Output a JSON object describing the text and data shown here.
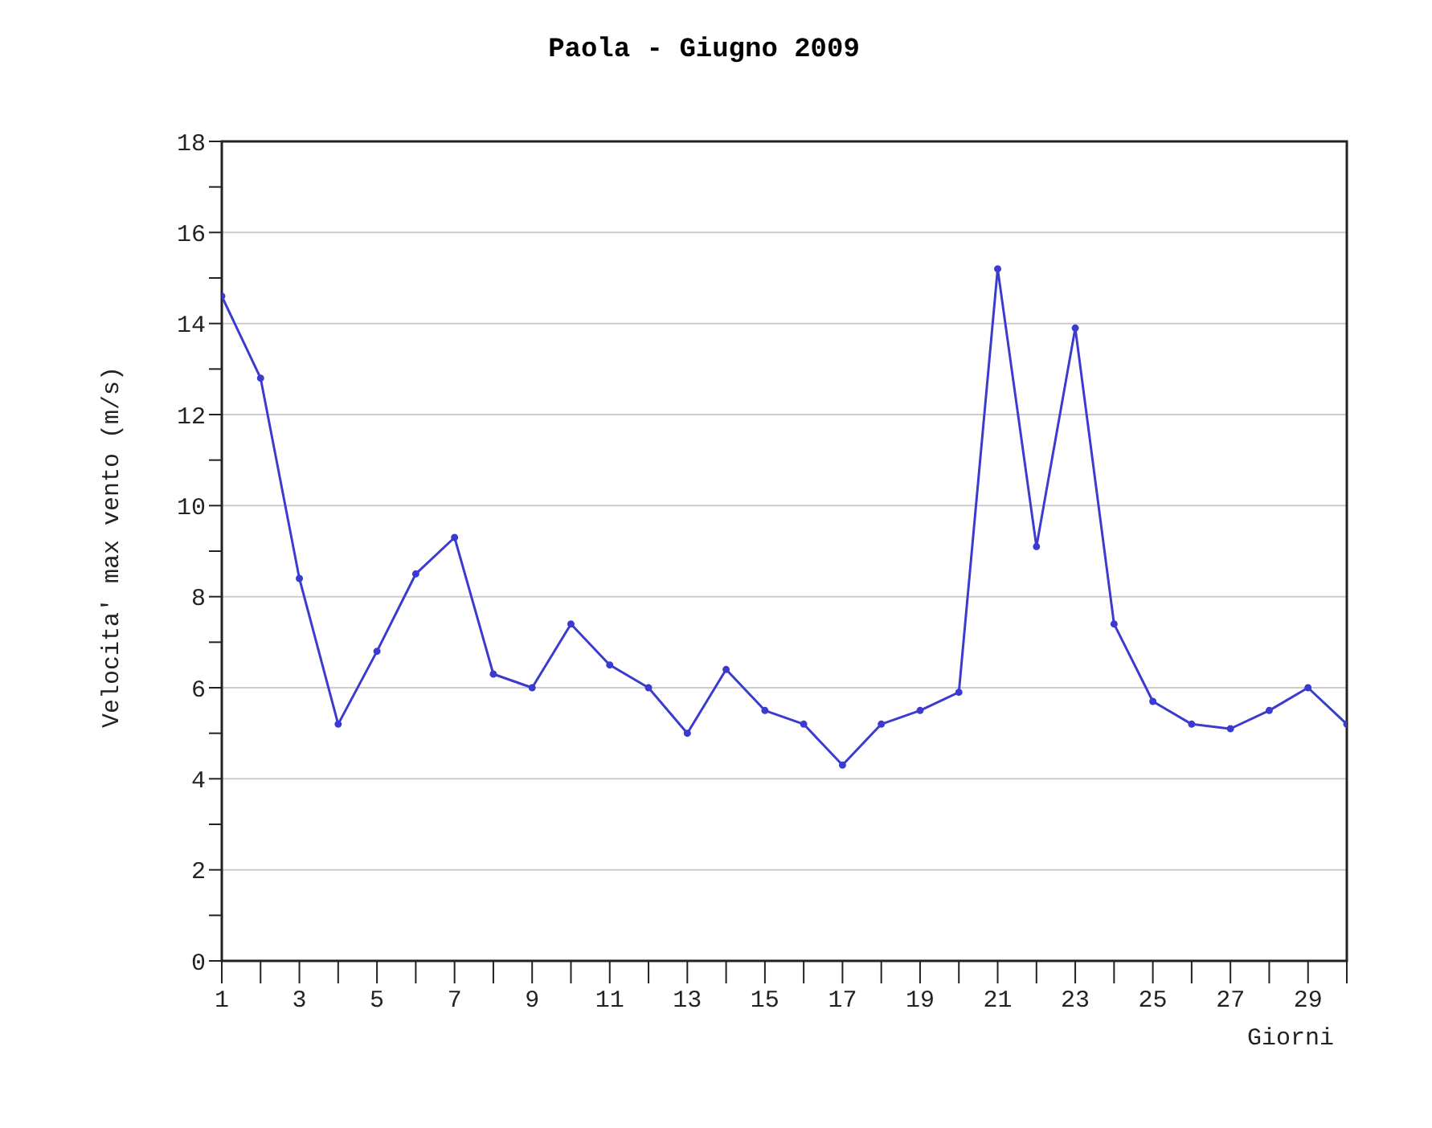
{
  "chart_data": {
    "type": "line",
    "title": "Paola - Giugno 2009",
    "xlabel": "Giorni",
    "ylabel": "Velocita' max vento (m/s)",
    "x": [
      1,
      2,
      3,
      4,
      5,
      6,
      7,
      8,
      9,
      10,
      11,
      12,
      13,
      14,
      15,
      16,
      17,
      18,
      19,
      20,
      21,
      22,
      23,
      24,
      25,
      26,
      27,
      28,
      29,
      30
    ],
    "series": [
      {
        "color": "#3b3bd0",
        "values": [
          14.6,
          12.8,
          8.4,
          5.2,
          6.8,
          8.5,
          9.3,
          6.3,
          6.0,
          7.4,
          6.5,
          6.0,
          5.0,
          6.4,
          5.5,
          5.2,
          4.3,
          5.2,
          5.5,
          5.9,
          15.2,
          9.1,
          13.9,
          7.4,
          5.7,
          5.2,
          5.1,
          5.5,
          6.0,
          5.2
        ]
      }
    ],
    "xlim": [
      1,
      30
    ],
    "xticks": [
      1,
      {
        "value": 2,
        "label": null
      },
      3,
      {
        "value": 4,
        "label": null
      },
      5,
      {
        "value": 6,
        "label": null
      },
      7,
      {
        "value": 8,
        "label": null
      },
      9,
      {
        "value": 10,
        "label": null
      },
      11,
      {
        "value": 12,
        "label": null
      },
      13,
      {
        "value": 14,
        "label": null
      },
      15,
      {
        "value": 16,
        "label": null
      },
      17,
      {
        "value": 18,
        "label": null
      },
      19,
      {
        "value": 20,
        "label": null
      },
      21,
      {
        "value": 22,
        "label": null
      },
      23,
      {
        "value": 24,
        "label": null
      },
      25,
      {
        "value": 26,
        "label": null
      },
      27,
      {
        "value": 28,
        "label": null
      },
      29,
      {
        "value": 30,
        "label": null
      }
    ],
    "ylim": [
      0,
      18
    ],
    "yticks": [
      0,
      {
        "value": 1,
        "label": null
      },
      2,
      {
        "value": 3,
        "label": null
      },
      4,
      {
        "value": 5,
        "label": null
      },
      6,
      {
        "value": 7,
        "label": null
      },
      8,
      {
        "value": 9,
        "label": null
      },
      10,
      {
        "value": 11,
        "label": null
      },
      12,
      {
        "value": 13,
        "label": null
      },
      14,
      {
        "value": 15,
        "label": null
      },
      16,
      {
        "value": 17,
        "label": null
      },
      18
    ],
    "grid": "y",
    "marker": "circle",
    "line_style": "solid"
  }
}
